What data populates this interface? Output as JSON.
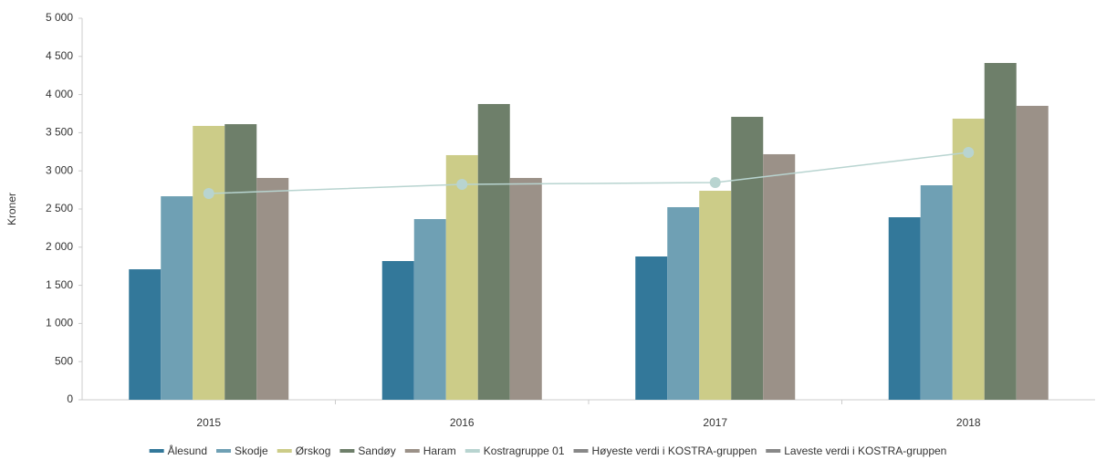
{
  "chart_data": {
    "type": "bar",
    "y_label": "Kroner",
    "categories": [
      "2015",
      "2016",
      "2017",
      "2018"
    ],
    "ylim": [
      0,
      5000
    ],
    "yticks": [
      0,
      500,
      {
        "value": 1000,
        "label": "1 000"
      },
      {
        "value": 1500,
        "label": "1 500"
      },
      {
        "value": 2000,
        "label": "2 000"
      },
      {
        "value": 2500,
        "label": "2 500"
      },
      {
        "value": 3000,
        "label": "3 000"
      },
      {
        "value": 3500,
        "label": "3 500"
      },
      {
        "value": 4000,
        "label": "4 000"
      },
      {
        "value": 4500,
        "label": "4 500"
      },
      {
        "value": 5000,
        "label": "5 000"
      }
    ],
    "series": [
      {
        "name": "Ålesund",
        "color": "#33789a",
        "kind": "bar",
        "values": [
          1710,
          1818,
          1878,
          2392
        ]
      },
      {
        "name": "Skodje",
        "color": "#6fa0b4",
        "kind": "bar",
        "values": [
          2667,
          2368,
          2524,
          2811
        ]
      },
      {
        "name": "Ørskog",
        "color": "#cccc88",
        "kind": "bar",
        "values": [
          3589,
          3206,
          2739,
          3684
        ]
      },
      {
        "name": "Sandøy",
        "color": "#6e7f6a",
        "kind": "bar",
        "values": [
          3612,
          3876,
          3708,
          4414
        ]
      },
      {
        "name": "Haram",
        "color": "#9b9188",
        "kind": "bar",
        "values": [
          2907,
          2907,
          3218,
          3852
        ]
      },
      {
        "name": "Kostragruppe 01",
        "color": "#b8d4d0",
        "kind": "line",
        "values": [
          2703,
          2823,
          2847,
          3242
        ]
      },
      {
        "name": "Høyeste verdi i KOSTRA-gruppen",
        "color": "#888888",
        "kind": "line",
        "visible": false,
        "values": [
          null,
          null,
          null,
          null
        ]
      },
      {
        "name": "Laveste verdi i KOSTRA-gruppen",
        "color": "#888888",
        "kind": "line",
        "visible": false,
        "values": [
          null,
          null,
          null,
          null
        ]
      }
    ]
  }
}
